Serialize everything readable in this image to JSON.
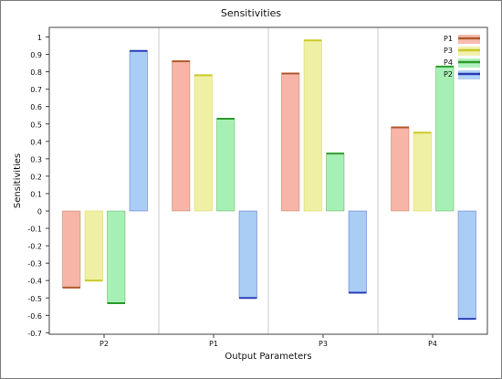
{
  "chart_data": {
    "type": "bar",
    "title": "Sensitivities",
    "xlabel": "Output Parameters",
    "ylabel": "Sensitivities",
    "ylim": [
      -0.7,
      1.05
    ],
    "yticks": [
      1,
      0.9,
      0.8,
      0.7,
      0.6,
      0.5,
      0.4,
      0.3,
      0.2,
      0.1,
      0,
      -0.1,
      -0.2,
      -0.3,
      -0.4,
      -0.5,
      -0.6,
      -0.7
    ],
    "ytick_labels": [
      "1",
      "0.9",
      "0.8",
      "0.7",
      "0.6",
      "0.5",
      "0.4",
      "0.3",
      "0.2",
      "0.1",
      "0",
      "-0.1",
      "-0.2",
      "-0.3",
      "-0.4",
      "-0.5",
      "-0.6",
      "-0.7"
    ],
    "categories": [
      "P2",
      "P1",
      "P3",
      "P4"
    ],
    "grid": "vertical separators between groups",
    "legend_placement": "top-right",
    "series": [
      {
        "name": "P1",
        "fill": "#f7b5a8",
        "edge": "#b05a2c",
        "values": [
          -0.44,
          0.86,
          0.79,
          0.48
        ]
      },
      {
        "name": "P3",
        "fill": "#f0f0a4",
        "edge": "#c9c928",
        "values": [
          -0.4,
          0.78,
          0.98,
          0.45
        ]
      },
      {
        "name": "P4",
        "fill": "#a7f0b5",
        "edge": "#2e9a2e",
        "values": [
          -0.53,
          0.53,
          0.33,
          0.83
        ]
      },
      {
        "name": "P2",
        "fill": "#a9cdf5",
        "edge": "#2a3fb8",
        "values": [
          0.92,
          -0.5,
          -0.47,
          -0.62
        ]
      }
    ]
  }
}
